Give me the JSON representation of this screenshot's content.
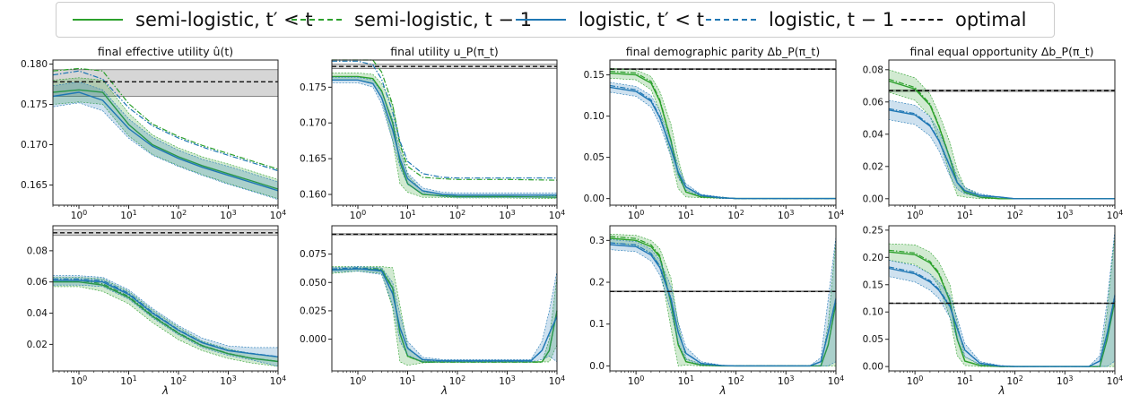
{
  "legend": {
    "items": [
      {
        "label": "semi-logistic, t′ < t",
        "color": "#2ca02c",
        "dash": "solid"
      },
      {
        "label": "semi-logistic, t − 1",
        "color": "#2ca02c",
        "dash": "dashdot"
      },
      {
        "label": "logistic, t′ < t",
        "color": "#1f77b4",
        "dash": "solid"
      },
      {
        "label": "logistic, t − 1",
        "color": "#1f77b4",
        "dash": "dashdot"
      },
      {
        "label": "optimal",
        "color": "#111111",
        "dash": "dashed"
      }
    ]
  },
  "colors": {
    "semi": "#2ca02c",
    "logistic": "#1f77b4",
    "optimal": "#111111",
    "optimal_band": "#c8c8c8"
  },
  "chart_data": [
    {
      "type": "line",
      "title": "final effective utility û(t)",
      "xlabel": "",
      "xscale": "log",
      "xlim": [
        0.3,
        10000
      ],
      "xticks": [
        "10^0",
        "10^1",
        "10^2",
        "10^3",
        "10^4"
      ],
      "ylim": [
        0.1625,
        0.1805
      ],
      "yticks": [
        0.165,
        0.17,
        0.175,
        0.18
      ],
      "ytick_labels": [
        "0.165",
        "0.170",
        "0.175",
        "0.180"
      ],
      "optimal": 0.1778,
      "optimal_band": [
        0.176,
        0.1793
      ],
      "series": [
        {
          "key": "semi",
          "x": [
            0.3,
            1,
            3,
            10,
            30,
            100,
            300,
            1000,
            3000,
            10000
          ],
          "values": [
            0.1765,
            0.1768,
            0.1765,
            0.1725,
            0.17,
            0.1685,
            0.1674,
            0.1664,
            0.1655,
            0.1645
          ],
          "band": [
            0.0015,
            0.0015,
            0.0015,
            0.0014,
            0.0012,
            0.0011,
            0.0011,
            0.0012,
            0.0012,
            0.0012
          ]
        },
        {
          "key": "logistic",
          "x": [
            0.3,
            1,
            3,
            10,
            30,
            100,
            300,
            1000,
            3000,
            10000
          ],
          "values": [
            0.176,
            0.1765,
            0.1755,
            0.172,
            0.1698,
            0.1683,
            0.1672,
            0.1662,
            0.1653,
            0.1643
          ],
          "band": [
            0.0013,
            0.0013,
            0.0013,
            0.0012,
            0.0011,
            0.001,
            0.001,
            0.0011,
            0.0011,
            0.0011
          ]
        }
      ]
    },
    {
      "type": "line",
      "title": "final utility u_P(π_t)",
      "xlabel": "",
      "xscale": "log",
      "xlim": [
        0.3,
        10000
      ],
      "xticks": [
        "10^0",
        "10^1",
        "10^2",
        "10^3",
        "10^4"
      ],
      "ylim": [
        0.1585,
        0.1788
      ],
      "yticks": [
        0.16,
        0.165,
        0.17,
        0.175
      ],
      "ytick_labels": [
        "0.160",
        "0.165",
        "0.170",
        "0.175"
      ],
      "optimal": 0.1779,
      "optimal_band": [
        0.1776,
        0.1782
      ],
      "series": [
        {
          "key": "semi",
          "x": [
            0.3,
            1,
            2,
            3,
            5,
            7,
            10,
            20,
            50,
            100,
            1000,
            10000
          ],
          "values": [
            0.1765,
            0.1765,
            0.1762,
            0.1745,
            0.17,
            0.1645,
            0.1615,
            0.16,
            0.1598,
            0.1597,
            0.1597,
            0.1596
          ],
          "band": [
            0.0005,
            0.0005,
            0.0006,
            0.001,
            0.0025,
            0.003,
            0.0012,
            0.0004,
            0.0002,
            0.0002,
            0.0002,
            0.0002
          ]
        },
        {
          "key": "logistic",
          "x": [
            0.3,
            1,
            2,
            3,
            5,
            7,
            10,
            20,
            50,
            100,
            1000,
            10000
          ],
          "values": [
            0.176,
            0.176,
            0.1755,
            0.1735,
            0.169,
            0.165,
            0.1622,
            0.1605,
            0.16,
            0.1599,
            0.1599,
            0.1599
          ],
          "band": [
            0.0004,
            0.0004,
            0.0005,
            0.0008,
            0.0015,
            0.0012,
            0.0008,
            0.0004,
            0.0003,
            0.0003,
            0.0003,
            0.0003
          ]
        }
      ]
    },
    {
      "type": "line",
      "title": "final demographic parity Δb_P(π_t)",
      "xlabel": "",
      "xscale": "log",
      "xlim": [
        0.3,
        10000
      ],
      "xticks": [
        "10^0",
        "10^1",
        "10^2",
        "10^3",
        "10^4"
      ],
      "ylim": [
        -0.008,
        0.168
      ],
      "yticks": [
        0.0,
        0.05,
        0.1,
        0.15
      ],
      "ytick_labels": [
        "0.00",
        "0.05",
        "0.10",
        "0.15"
      ],
      "optimal": 0.157,
      "optimal_band": [
        0.1565,
        0.1575
      ],
      "series": [
        {
          "key": "semi",
          "x": [
            0.3,
            1,
            2,
            3,
            5,
            7,
            10,
            20,
            50,
            100,
            1000,
            10000
          ],
          "values": [
            0.152,
            0.15,
            0.14,
            0.118,
            0.07,
            0.03,
            0.008,
            0.002,
            0.001,
            0.0,
            0.0,
            0.0
          ],
          "band": [
            0.006,
            0.006,
            0.008,
            0.012,
            0.02,
            0.018,
            0.006,
            0.001,
            0.001,
            0.0,
            0.0,
            0.0
          ]
        },
        {
          "key": "logistic",
          "x": [
            0.3,
            1,
            2,
            3,
            5,
            7,
            10,
            20,
            50,
            100,
            1000,
            10000
          ],
          "values": [
            0.135,
            0.13,
            0.118,
            0.098,
            0.06,
            0.032,
            0.014,
            0.004,
            0.001,
            0.0,
            0.0,
            0.0
          ],
          "band": [
            0.006,
            0.006,
            0.007,
            0.008,
            0.009,
            0.007,
            0.004,
            0.001,
            0.001,
            0.0,
            0.0,
            0.0
          ]
        }
      ]
    },
    {
      "type": "line",
      "title": "final equal opportunity Δb_P(π_t)",
      "xlabel": "",
      "xscale": "log",
      "xlim": [
        0.3,
        10000
      ],
      "xticks": [
        "10^0",
        "10^1",
        "10^2",
        "10^3",
        "10^4"
      ],
      "ylim": [
        -0.004,
        0.086
      ],
      "yticks": [
        0.0,
        0.02,
        0.04,
        0.06,
        0.08
      ],
      "ytick_labels": [
        "0.00",
        "0.02",
        "0.04",
        "0.06",
        "0.08"
      ],
      "optimal": 0.067,
      "optimal_band": [
        0.0665,
        0.0675
      ],
      "series": [
        {
          "key": "semi",
          "x": [
            0.3,
            1,
            2,
            3,
            5,
            7,
            10,
            20,
            50,
            100,
            1000,
            10000
          ],
          "values": [
            0.073,
            0.068,
            0.058,
            0.045,
            0.025,
            0.01,
            0.004,
            0.001,
            0.0,
            0.0,
            0.0,
            0.0
          ],
          "band": [
            0.007,
            0.007,
            0.007,
            0.008,
            0.01,
            0.008,
            0.003,
            0.001,
            0.0,
            0.0,
            0.0,
            0.0
          ]
        },
        {
          "key": "logistic",
          "x": [
            0.3,
            1,
            2,
            3,
            5,
            7,
            10,
            20,
            50,
            100,
            1000,
            10000
          ],
          "values": [
            0.055,
            0.052,
            0.045,
            0.036,
            0.02,
            0.01,
            0.005,
            0.002,
            0.001,
            0.0,
            0.0,
            0.0
          ],
          "band": [
            0.006,
            0.006,
            0.006,
            0.006,
            0.006,
            0.004,
            0.002,
            0.001,
            0.0,
            0.0,
            0.0,
            0.0
          ]
        }
      ]
    },
    {
      "type": "line",
      "title": "",
      "xlabel": "λ",
      "xscale": "log",
      "xlim": [
        0.3,
        10000
      ],
      "xticks": [
        "10^0",
        "10^1",
        "10^2",
        "10^3",
        "10^4"
      ],
      "ylim": [
        0.003,
        0.096
      ],
      "yticks": [
        0.02,
        0.04,
        0.06,
        0.08
      ],
      "ytick_labels": [
        "0.02",
        "0.04",
        "0.06",
        "0.08"
      ],
      "optimal": 0.0915,
      "optimal_band": [
        0.0898,
        0.0933
      ],
      "series": [
        {
          "key": "semi",
          "x": [
            0.3,
            1,
            3,
            10,
            30,
            100,
            300,
            1000,
            3000,
            10000
          ],
          "values": [
            0.06,
            0.06,
            0.058,
            0.05,
            0.038,
            0.027,
            0.019,
            0.014,
            0.011,
            0.009
          ],
          "band": [
            0.003,
            0.003,
            0.004,
            0.004,
            0.004,
            0.004,
            0.003,
            0.003,
            0.003,
            0.003
          ]
        },
        {
          "key": "logistic",
          "x": [
            0.3,
            1,
            3,
            10,
            30,
            100,
            300,
            1000,
            3000,
            10000
          ],
          "values": [
            0.061,
            0.061,
            0.06,
            0.052,
            0.04,
            0.029,
            0.021,
            0.016,
            0.014,
            0.012
          ],
          "band": [
            0.003,
            0.003,
            0.003,
            0.003,
            0.003,
            0.003,
            0.003,
            0.003,
            0.004,
            0.006
          ]
        }
      ]
    },
    {
      "type": "line",
      "title": "",
      "xlabel": "λ",
      "xscale": "log",
      "xlim": [
        0.3,
        10000
      ],
      "xticks": [
        "10^0",
        "10^1",
        "10^2",
        "10^3",
        "10^4"
      ],
      "ylim": [
        -0.028,
        0.1
      ],
      "yticks": [
        0.0,
        0.025,
        0.05,
        0.075
      ],
      "ytick_labels": [
        "0.000",
        "0.025",
        "0.050",
        "0.075"
      ],
      "optimal": 0.0925,
      "optimal_band": [
        0.092,
        0.093
      ],
      "series": [
        {
          "key": "semi",
          "x": [
            0.3,
            1,
            3,
            5,
            7,
            10,
            20,
            50,
            100,
            1000,
            3000,
            5000,
            7000,
            10000
          ],
          "values": [
            0.061,
            0.062,
            0.061,
            0.045,
            0.005,
            -0.015,
            -0.02,
            -0.02,
            -0.02,
            -0.02,
            -0.02,
            -0.02,
            -0.01,
            0.025
          ],
          "band": [
            0.003,
            0.002,
            0.003,
            0.018,
            0.025,
            0.008,
            0.001,
            0.0,
            0.0,
            0.0,
            0.0,
            0.0,
            0.01,
            0.03
          ]
        },
        {
          "key": "logistic",
          "x": [
            0.3,
            1,
            3,
            5,
            7,
            10,
            20,
            50,
            100,
            1000,
            3000,
            5000,
            7000,
            10000
          ],
          "values": [
            0.061,
            0.062,
            0.06,
            0.04,
            0.01,
            -0.008,
            -0.018,
            -0.019,
            -0.019,
            -0.019,
            -0.019,
            -0.01,
            0.005,
            0.02
          ],
          "band": [
            0.002,
            0.002,
            0.003,
            0.01,
            0.012,
            0.006,
            0.002,
            0.001,
            0.001,
            0.001,
            0.001,
            0.008,
            0.02,
            0.04
          ]
        }
      ]
    },
    {
      "type": "line",
      "title": "",
      "xlabel": "λ",
      "xscale": "log",
      "xlim": [
        0.3,
        10000
      ],
      "xticks": [
        "10^0",
        "10^1",
        "10^2",
        "10^3",
        "10^4"
      ],
      "ylim": [
        -0.012,
        0.335
      ],
      "yticks": [
        0.0,
        0.1,
        0.2,
        0.3
      ],
      "ytick_labels": [
        "0.0",
        "0.1",
        "0.2",
        "0.3"
      ],
      "optimal": 0.178,
      "optimal_band": [
        0.177,
        0.179
      ],
      "series": [
        {
          "key": "semi",
          "x": [
            0.3,
            1,
            2,
            3,
            5,
            7,
            10,
            20,
            50,
            100,
            1000,
            3000,
            5000,
            7000,
            10000
          ],
          "values": [
            0.305,
            0.3,
            0.285,
            0.26,
            0.15,
            0.05,
            0.01,
            0.002,
            0.0,
            0.0,
            0.0,
            0.0,
            0.0,
            0.05,
            0.15
          ],
          "band": [
            0.01,
            0.012,
            0.015,
            0.02,
            0.06,
            0.05,
            0.008,
            0.002,
            0.0,
            0.0,
            0.0,
            0.0,
            0.0,
            0.05,
            0.15
          ]
        },
        {
          "key": "logistic",
          "x": [
            0.3,
            1,
            2,
            3,
            5,
            7,
            10,
            20,
            50,
            100,
            1000,
            3000,
            5000,
            7000,
            10000
          ],
          "values": [
            0.29,
            0.285,
            0.265,
            0.235,
            0.16,
            0.08,
            0.03,
            0.006,
            0.001,
            0.0,
            0.0,
            0.0,
            0.01,
            0.08,
            0.16
          ],
          "band": [
            0.012,
            0.012,
            0.014,
            0.018,
            0.03,
            0.025,
            0.015,
            0.004,
            0.001,
            0.0,
            0.0,
            0.0,
            0.01,
            0.08,
            0.15
          ]
        }
      ]
    },
    {
      "type": "line",
      "title": "",
      "xlabel": "λ",
      "xscale": "log",
      "xlim": [
        0.3,
        10000
      ],
      "xticks": [
        "10^0",
        "10^1",
        "10^2",
        "10^3",
        "10^4"
      ],
      "ylim": [
        -0.008,
        0.258
      ],
      "yticks": [
        0.0,
        0.05,
        0.1,
        0.15,
        0.2,
        0.25
      ],
      "ytick_labels": [
        "0.00",
        "0.05",
        "0.10",
        "0.15",
        "0.20",
        "0.25"
      ],
      "optimal": 0.116,
      "optimal_band": [
        0.1155,
        0.1165
      ],
      "series": [
        {
          "key": "semi",
          "x": [
            0.3,
            1,
            2,
            3,
            5,
            7,
            10,
            20,
            50,
            100,
            1000,
            3000,
            5000,
            7000,
            10000
          ],
          "values": [
            0.21,
            0.205,
            0.19,
            0.17,
            0.12,
            0.05,
            0.01,
            0.002,
            0.0,
            0.0,
            0.0,
            0.0,
            0.0,
            0.05,
            0.12
          ],
          "band": [
            0.015,
            0.018,
            0.02,
            0.022,
            0.03,
            0.03,
            0.008,
            0.002,
            0.0,
            0.0,
            0.0,
            0.0,
            0.0,
            0.05,
            0.12
          ]
        },
        {
          "key": "logistic",
          "x": [
            0.3,
            1,
            2,
            3,
            5,
            7,
            10,
            20,
            50,
            100,
            1000,
            3000,
            5000,
            7000,
            10000
          ],
          "values": [
            0.18,
            0.17,
            0.155,
            0.14,
            0.11,
            0.07,
            0.03,
            0.006,
            0.001,
            0.0,
            0.0,
            0.0,
            0.01,
            0.06,
            0.13
          ],
          "band": [
            0.015,
            0.015,
            0.015,
            0.015,
            0.02,
            0.02,
            0.012,
            0.003,
            0.001,
            0.0,
            0.0,
            0.0,
            0.01,
            0.06,
            0.12
          ]
        }
      ]
    }
  ]
}
